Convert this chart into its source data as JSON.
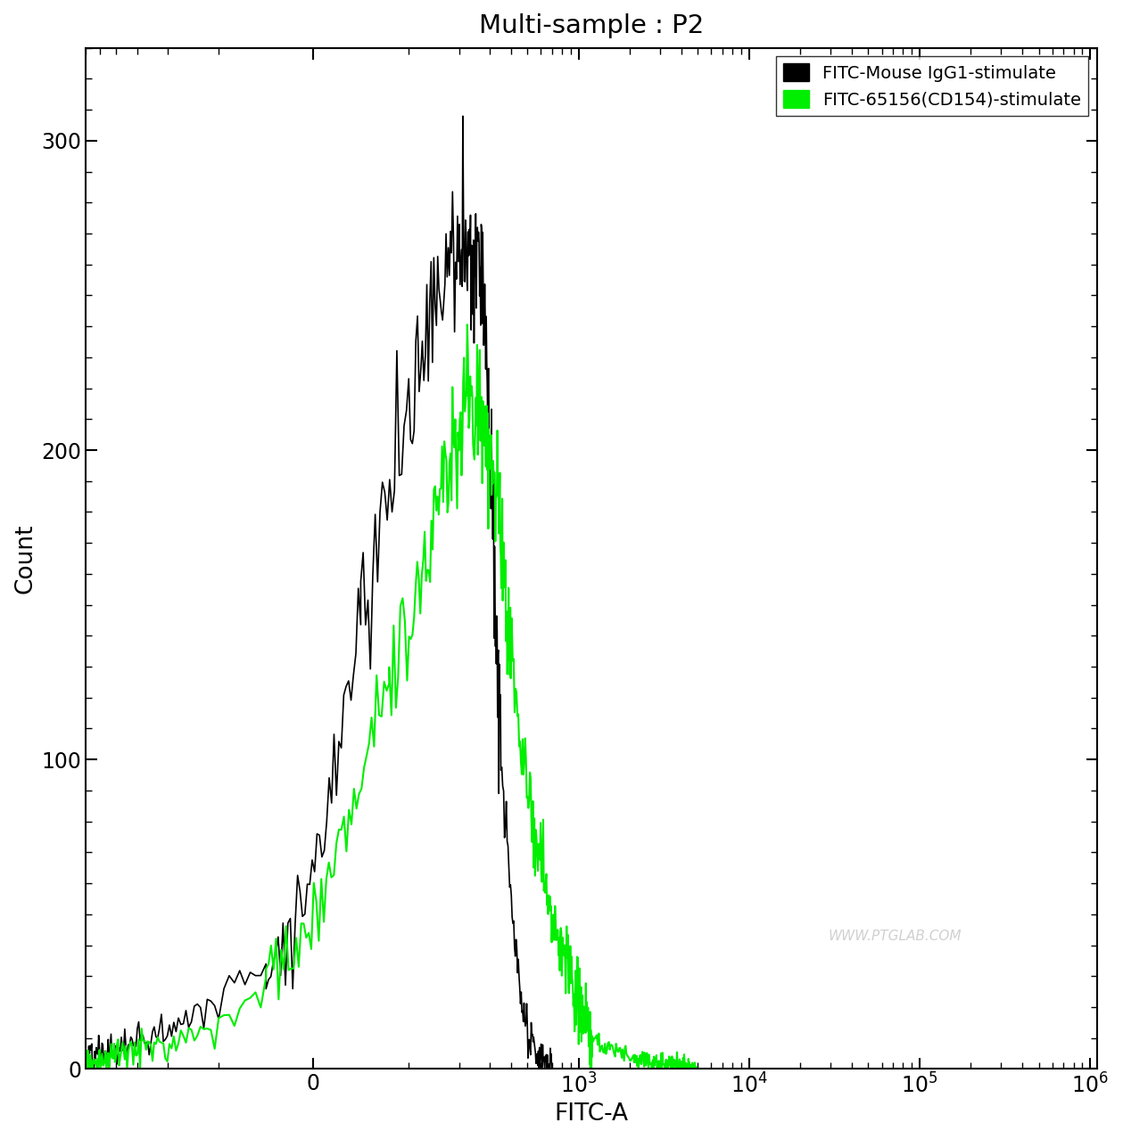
{
  "title": "Multi-sample : P2",
  "xlabel": "FITC-A",
  "ylabel": "Count",
  "ylim": [
    0,
    330
  ],
  "yticks": [
    0,
    100,
    200,
    300
  ],
  "legend_labels": [
    "FITC-Mouse IgG1-stimulate",
    "FITC-65156(CD154)-stimulate"
  ],
  "legend_colors": [
    "#000000",
    "#00ee00"
  ],
  "background_color": "#ffffff",
  "watermark": "WWW.PTGLAB.COM",
  "linthresh": 100,
  "xmin": -600,
  "xmax": 1100000,
  "title_fontsize": 21,
  "axis_fontsize": 19,
  "tick_fontsize": 17
}
